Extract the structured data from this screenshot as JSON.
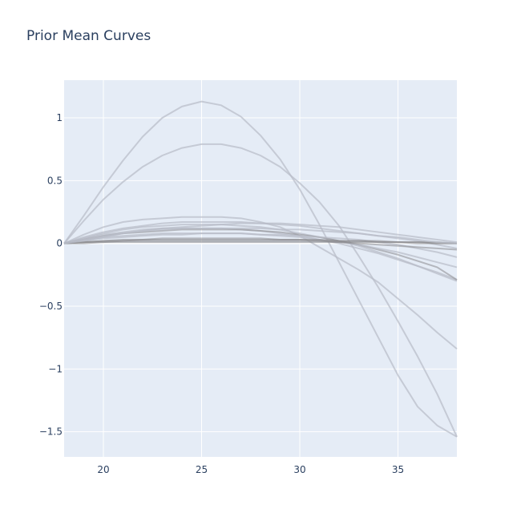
{
  "chart_data": {
    "type": "line",
    "title": "Prior Mean Curves",
    "xlabel": "",
    "ylabel": "",
    "xlim": [
      18,
      38
    ],
    "ylim": [
      -1.7,
      1.3
    ],
    "x_ticks": [
      20,
      25,
      30,
      35
    ],
    "y_ticks": [
      1,
      0.5,
      0,
      -0.5,
      -1,
      -1.5
    ],
    "x_tick_labels": [
      "20",
      "25",
      "30",
      "35"
    ],
    "y_tick_labels": [
      "1",
      "0.5",
      "0",
      "−0.5",
      "−1",
      "−1.5"
    ],
    "grid": true,
    "legend": "none",
    "colors": {
      "plot_bg": "#e5ecf6",
      "grid": "#ffffff",
      "line_light": "#b8bcc8",
      "line_dark": "#8a8a8e",
      "title": "#2a3f5f"
    },
    "x": [
      18,
      19,
      20,
      21,
      22,
      23,
      24,
      25,
      26,
      27,
      28,
      29,
      30,
      31,
      32,
      33,
      34,
      35,
      36,
      37,
      38
    ],
    "series": [
      {
        "values": [
          0,
          0.22,
          0.45,
          0.66,
          0.85,
          1.0,
          1.09,
          1.13,
          1.1,
          1.01,
          0.86,
          0.67,
          0.43,
          0.15,
          -0.15,
          -0.45,
          -0.75,
          -1.05,
          -1.3,
          -1.45,
          -1.54
        ],
        "shade": "light"
      },
      {
        "values": [
          0,
          0.18,
          0.35,
          0.49,
          0.61,
          0.7,
          0.76,
          0.79,
          0.79,
          0.76,
          0.7,
          0.61,
          0.48,
          0.33,
          0.14,
          -0.1,
          -0.35,
          -0.62,
          -0.9,
          -1.2,
          -1.54
        ],
        "shade": "light"
      },
      {
        "values": [
          0,
          0.07,
          0.13,
          0.17,
          0.19,
          0.2,
          0.21,
          0.21,
          0.21,
          0.2,
          0.17,
          0.13,
          0.06,
          -0.03,
          -0.12,
          -0.21,
          -0.31,
          -0.44,
          -0.57,
          -0.71,
          -0.84
        ],
        "shade": "light"
      },
      {
        "values": [
          0,
          0.05,
          0.09,
          0.12,
          0.14,
          0.16,
          0.17,
          0.17,
          0.17,
          0.17,
          0.16,
          0.15,
          0.14,
          0.12,
          0.1,
          0.08,
          0.06,
          0.04,
          0.02,
          -0.01,
          -0.04
        ],
        "shade": "light"
      },
      {
        "values": [
          0,
          0.04,
          0.08,
          0.11,
          0.13,
          0.14,
          0.15,
          0.15,
          0.15,
          0.14,
          0.13,
          0.11,
          0.08,
          0.05,
          0.02,
          -0.02,
          -0.07,
          -0.12,
          -0.18,
          -0.24,
          -0.3
        ],
        "shade": "light"
      },
      {
        "values": [
          0,
          0.04,
          0.07,
          0.09,
          0.11,
          0.12,
          0.12,
          0.12,
          0.12,
          0.11,
          0.1,
          0.08,
          0.06,
          0.03,
          0.0,
          -0.04,
          -0.08,
          -0.13,
          -0.18,
          -0.23,
          -0.29
        ],
        "shade": "light"
      },
      {
        "values": [
          0,
          0.03,
          0.06,
          0.08,
          0.09,
          0.1,
          0.11,
          0.11,
          0.11,
          0.11,
          0.1,
          0.09,
          0.07,
          0.05,
          0.02,
          -0.01,
          -0.05,
          -0.09,
          -0.14,
          -0.19,
          -0.29
        ],
        "shade": "dark"
      },
      {
        "values": [
          0,
          0.03,
          0.05,
          0.06,
          0.07,
          0.08,
          0.08,
          0.08,
          0.08,
          0.08,
          0.07,
          0.06,
          0.05,
          0.03,
          0.01,
          -0.01,
          -0.04,
          -0.07,
          -0.11,
          -0.15,
          -0.19
        ],
        "shade": "light"
      },
      {
        "values": [
          0,
          0.02,
          0.04,
          0.05,
          0.06,
          0.07,
          0.07,
          0.08,
          0.08,
          0.08,
          0.07,
          0.07,
          0.06,
          0.05,
          0.04,
          0.03,
          0.01,
          -0.01,
          -0.04,
          -0.07,
          -0.11
        ],
        "shade": "light"
      },
      {
        "values": [
          0,
          0.01,
          0.02,
          0.03,
          0.03,
          0.04,
          0.04,
          0.04,
          0.04,
          0.04,
          0.04,
          0.03,
          0.03,
          0.02,
          0.01,
          0.0,
          -0.01,
          -0.02,
          -0.03,
          -0.04,
          -0.05
        ],
        "shade": "dark"
      },
      {
        "values": [
          0,
          0.01,
          0.02,
          0.02,
          0.03,
          0.03,
          0.03,
          0.03,
          0.03,
          0.03,
          0.03,
          0.03,
          0.03,
          0.03,
          0.02,
          0.02,
          0.02,
          0.01,
          0.01,
          0.0,
          0.0
        ],
        "shade": "dark"
      },
      {
        "values": [
          0,
          0.01,
          0.01,
          0.02,
          0.02,
          0.02,
          0.02,
          0.02,
          0.02,
          0.02,
          0.02,
          0.02,
          0.02,
          0.02,
          0.02,
          0.02,
          0.01,
          0.01,
          0.01,
          0.01,
          0.0
        ],
        "shade": "dark"
      },
      {
        "values": [
          0,
          0.0,
          0.01,
          0.01,
          0.01,
          0.01,
          0.01,
          0.01,
          0.01,
          0.01,
          0.01,
          0.01,
          0.01,
          0.01,
          0.01,
          0.01,
          0.01,
          0.01,
          0.0,
          0.0,
          0.0
        ],
        "shade": "dark"
      },
      {
        "values": [
          0,
          0.02,
          0.05,
          0.08,
          0.1,
          0.12,
          0.13,
          0.14,
          0.15,
          0.16,
          0.16,
          0.16,
          0.15,
          0.14,
          0.13,
          0.11,
          0.09,
          0.07,
          0.05,
          0.03,
          0.01
        ],
        "shade": "light"
      },
      {
        "values": [
          0,
          0.03,
          0.06,
          0.08,
          0.1,
          0.11,
          0.12,
          0.12,
          0.12,
          0.12,
          0.12,
          0.11,
          0.11,
          0.1,
          0.09,
          0.08,
          0.06,
          0.05,
          0.03,
          0.01,
          0.0
        ],
        "shade": "light"
      }
    ]
  }
}
